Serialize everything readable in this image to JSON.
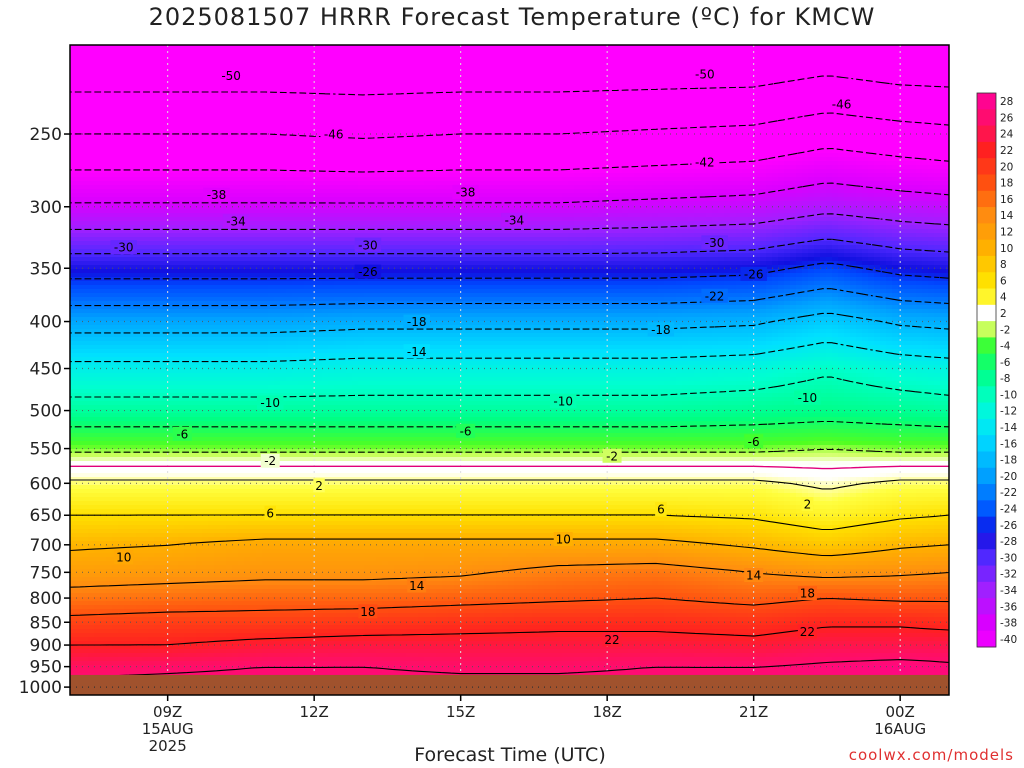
{
  "title": "2025081507 HRRR Forecast Temperature (ºC) for KMCW",
  "credit": "coolwx.com/models",
  "chart_data": {
    "type": "heatmap",
    "title": "2025081507 HRRR Forecast Temperature (ºC) for KMCW",
    "xlabel": "Forecast Time (UTC)",
    "ylabel": "",
    "x_ticks": [
      {
        "hour": 9,
        "lines": [
          "09Z",
          "15AUG",
          "2025"
        ]
      },
      {
        "hour": 12,
        "lines": [
          "12Z"
        ]
      },
      {
        "hour": 15,
        "lines": [
          "15Z"
        ]
      },
      {
        "hour": 18,
        "lines": [
          "18Z"
        ]
      },
      {
        "hour": 21,
        "lines": [
          "21Z"
        ]
      },
      {
        "hour": 24,
        "lines": [
          "00Z",
          "16AUG"
        ]
      }
    ],
    "xlim_hours": [
      7,
      25
    ],
    "y_ticks_hpa": [
      250,
      300,
      350,
      400,
      450,
      500,
      550,
      600,
      650,
      700,
      750,
      800,
      850,
      900,
      950,
      1000
    ],
    "ylim_hpa": [
      200,
      1020
    ],
    "y_scale": "log",
    "surface_hpa": 970,
    "colorbar_ticks": [
      28,
      26,
      24,
      22,
      20,
      18,
      16,
      14,
      12,
      10,
      8,
      6,
      4,
      2,
      -2,
      -4,
      -6,
      -8,
      -10,
      -12,
      -14,
      -16,
      -18,
      -20,
      -22,
      -24,
      -26,
      -28,
      -30,
      -32,
      -34,
      -36,
      -38,
      -40
    ],
    "color_scale": [
      {
        "t": -42,
        "color": "#ff00ff"
      },
      {
        "t": -38,
        "color": "#d800ff"
      },
      {
        "t": -34,
        "color": "#a020ff"
      },
      {
        "t": -30,
        "color": "#5028ff"
      },
      {
        "t": -27,
        "color": "#1010e0"
      },
      {
        "t": -25,
        "color": "#0048ff"
      },
      {
        "t": -20,
        "color": "#00a0ff"
      },
      {
        "t": -15,
        "color": "#00e0ff"
      },
      {
        "t": -11,
        "color": "#00ffd0"
      },
      {
        "t": -7,
        "color": "#00ff80"
      },
      {
        "t": -3,
        "color": "#50ff20"
      },
      {
        "t": -1.5,
        "color": "#d0ff60"
      },
      {
        "t": -0.5,
        "color": "#ffffff"
      },
      {
        "t": 1,
        "color": "#ffffff"
      },
      {
        "t": 3,
        "color": "#ffff40"
      },
      {
        "t": 6,
        "color": "#ffe000"
      },
      {
        "t": 10,
        "color": "#ffb000"
      },
      {
        "t": 14,
        "color": "#ff8c10"
      },
      {
        "t": 18,
        "color": "#ff5010"
      },
      {
        "t": 22,
        "color": "#ff2020"
      },
      {
        "t": 25,
        "color": "#ff1060"
      },
      {
        "t": 29,
        "color": "#ff00a0"
      }
    ],
    "surface_color": "#a0522d",
    "hours": [
      7,
      9,
      11,
      13,
      15,
      17,
      19,
      21,
      22.5,
      24,
      25
    ],
    "temperature_profile": [
      {
        "hpa": 200,
        "t": [
          -54,
          -54,
          -54,
          -54,
          -54,
          -54,
          -54,
          -54,
          -53,
          -54,
          -54
        ]
      },
      {
        "hpa": 250,
        "t": [
          -46,
          -46,
          -46,
          -46.5,
          -46,
          -46,
          -45.5,
          -45,
          -43.5,
          -44.5,
          -45
        ]
      },
      {
        "hpa": 300,
        "t": [
          -37.5,
          -37.5,
          -37.5,
          -37.5,
          -37.5,
          -37.5,
          -37,
          -36.5,
          -35,
          -36,
          -36.5
        ]
      },
      {
        "hpa": 350,
        "t": [
          -27.5,
          -27.5,
          -27.5,
          -27.5,
          -27.5,
          -27.5,
          -27.5,
          -27,
          -25,
          -27,
          -27.5
        ]
      },
      {
        "hpa": 400,
        "t": [
          -19.5,
          -19.5,
          -19.5,
          -19,
          -19,
          -19,
          -19,
          -18.5,
          -16.5,
          -18.5,
          -19
        ]
      },
      {
        "hpa": 450,
        "t": [
          -13,
          -13,
          -13,
          -12.5,
          -12.5,
          -12.5,
          -12.5,
          -12,
          -10.5,
          -12,
          -12.5
        ]
      },
      {
        "hpa": 500,
        "t": [
          -8.5,
          -8.5,
          -8.5,
          -8.5,
          -8.5,
          -8.5,
          -8.5,
          -8,
          -7.5,
          -8,
          -8.5
        ]
      },
      {
        "hpa": 550,
        "t": [
          -2.5,
          -2.5,
          -2.5,
          -2.5,
          -2.5,
          -2.5,
          -2.5,
          -2.5,
          -2,
          -2.5,
          -2.5
        ]
      },
      {
        "hpa": 600,
        "t": [
          2.5,
          2.5,
          2.5,
          2.5,
          2.5,
          2.5,
          2.5,
          2.5,
          1.5,
          2.5,
          2.5
        ]
      },
      {
        "hpa": 650,
        "t": [
          6,
          6,
          6,
          6,
          6,
          6,
          6,
          5.5,
          4,
          5.5,
          6
        ]
      },
      {
        "hpa": 700,
        "t": [
          9.5,
          10,
          11,
          11,
          11,
          11,
          11,
          9.5,
          8,
          9.5,
          10
        ]
      },
      {
        "hpa": 750,
        "t": [
          12,
          12.5,
          13,
          13,
          13.5,
          15,
          15.5,
          14,
          13,
          13.5,
          14
        ]
      },
      {
        "hpa": 800,
        "t": [
          15.5,
          16,
          16.5,
          16.5,
          17,
          17.5,
          18,
          17,
          18,
          17.5,
          17.5
        ]
      },
      {
        "hpa": 850,
        "t": [
          19,
          19.5,
          19.5,
          20,
          20.5,
          21,
          21,
          20.5,
          21.5,
          21.5,
          21
        ]
      },
      {
        "hpa": 900,
        "t": [
          22,
          22,
          23,
          23.5,
          23.5,
          23.5,
          23.5,
          23,
          24,
          24,
          24
        ]
      },
      {
        "hpa": 950,
        "t": [
          25,
          25.5,
          26,
          26,
          25.5,
          25.5,
          26,
          26,
          26.5,
          27,
          26.5
        ]
      },
      {
        "hpa": 1000,
        "t": [
          27,
          27,
          27,
          27,
          27,
          27,
          27,
          27,
          27,
          27,
          27
        ]
      }
    ],
    "contour_interval": 4,
    "contours": {
      "dashed_below_zero": true,
      "zero_line_color": "#e0007a",
      "labels": [
        {
          "v": -50,
          "hour": 10.3,
          "hpa": 216
        },
        {
          "v": -50,
          "hour": 20.0,
          "hpa": 215
        },
        {
          "v": -46,
          "hour": 22.8,
          "hpa": 232
        },
        {
          "v": -46,
          "hour": 12.4,
          "hpa": 250
        },
        {
          "v": -42,
          "hour": 20.0,
          "hpa": 268
        },
        {
          "v": -38,
          "hour": 10.0,
          "hpa": 291
        },
        {
          "v": -38,
          "hour": 15.1,
          "hpa": 289
        },
        {
          "v": -34,
          "hour": 10.4,
          "hpa": 311
        },
        {
          "v": -34,
          "hour": 16.1,
          "hpa": 310
        },
        {
          "v": -30,
          "hour": 8.1,
          "hpa": 332
        },
        {
          "v": -30,
          "hour": 13.1,
          "hpa": 330
        },
        {
          "v": -30,
          "hour": 20.2,
          "hpa": 328
        },
        {
          "v": -26,
          "hour": 13.1,
          "hpa": 353
        },
        {
          "v": -26,
          "hour": 21.0,
          "hpa": 355
        },
        {
          "v": -22,
          "hour": 20.2,
          "hpa": 375
        },
        {
          "v": -18,
          "hour": 14.1,
          "hpa": 400
        },
        {
          "v": -18,
          "hour": 19.1,
          "hpa": 408
        },
        {
          "v": -14,
          "hour": 14.1,
          "hpa": 431
        },
        {
          "v": -10,
          "hour": 11.1,
          "hpa": 490
        },
        {
          "v": -10,
          "hour": 17.1,
          "hpa": 488
        },
        {
          "v": -10,
          "hour": 22.1,
          "hpa": 484
        },
        {
          "v": -6,
          "hour": 9.3,
          "hpa": 530
        },
        {
          "v": -6,
          "hour": 15.1,
          "hpa": 526
        },
        {
          "v": -6,
          "hour": 21.0,
          "hpa": 540
        },
        {
          "v": -2,
          "hour": 11.1,
          "hpa": 567
        },
        {
          "v": -2,
          "hour": 18.1,
          "hpa": 560
        },
        {
          "v": 2,
          "hour": 12.1,
          "hpa": 603
        },
        {
          "v": 2,
          "hour": 22.1,
          "hpa": 632
        },
        {
          "v": 6,
          "hour": 11.1,
          "hpa": 646
        },
        {
          "v": 6,
          "hour": 19.1,
          "hpa": 640
        },
        {
          "v": 10,
          "hour": 8.1,
          "hpa": 722
        },
        {
          "v": 10,
          "hour": 17.1,
          "hpa": 690
        },
        {
          "v": 14,
          "hour": 14.1,
          "hpa": 775
        },
        {
          "v": 14,
          "hour": 21.0,
          "hpa": 755
        },
        {
          "v": 18,
          "hour": 13.1,
          "hpa": 827
        },
        {
          "v": 18,
          "hour": 22.1,
          "hpa": 790
        },
        {
          "v": 22,
          "hour": 18.1,
          "hpa": 888
        },
        {
          "v": 22,
          "hour": 22.1,
          "hpa": 870
        }
      ]
    },
    "grid": true
  }
}
